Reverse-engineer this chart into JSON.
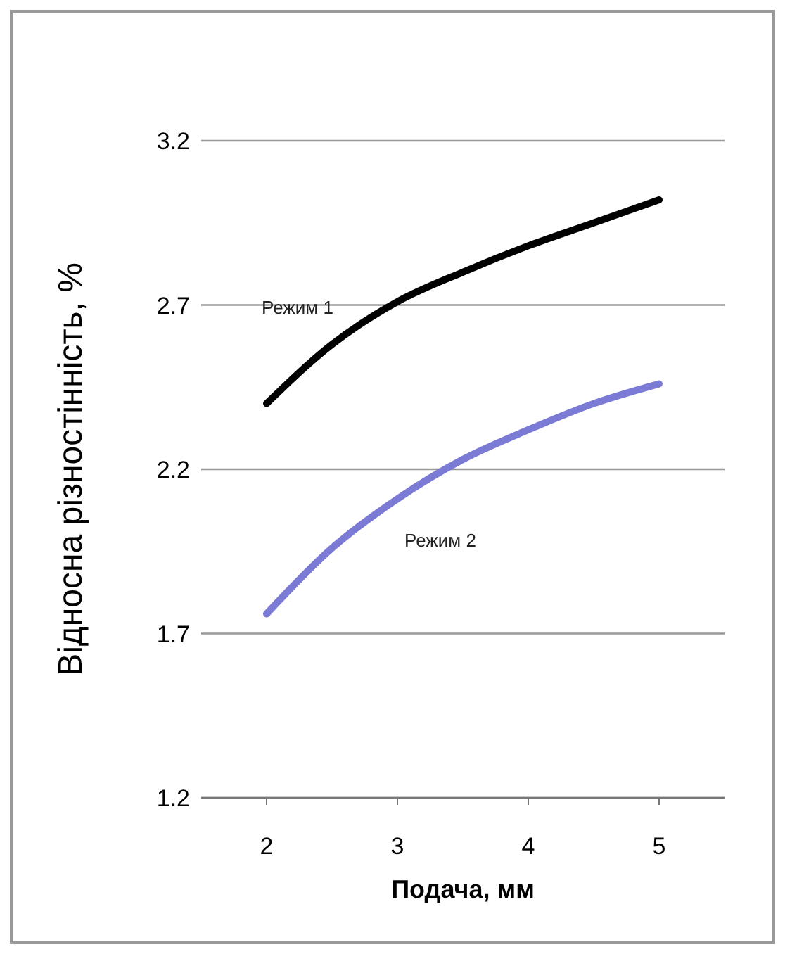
{
  "chart_data": {
    "type": "line",
    "xlabel": "Подача, мм",
    "ylabel": "Відносна різностінність, %",
    "x": [
      2,
      2.5,
      3,
      3.5,
      4,
      4.5,
      5
    ],
    "series": [
      {
        "name": "Режим 1",
        "color": "#000000",
        "values": [
          2.4,
          2.58,
          2.71,
          2.8,
          2.88,
          2.95,
          3.02
        ]
      },
      {
        "name": "Режим 2",
        "color": "#7b7bd6",
        "values": [
          1.76,
          1.96,
          2.11,
          2.23,
          2.32,
          2.4,
          2.46
        ]
      }
    ],
    "xlim": [
      1.5,
      5.5
    ],
    "xticks": [
      2,
      3,
      4,
      5
    ],
    "ylim": [
      1.2,
      3.2
    ],
    "yticks": [
      1.2,
      1.7,
      2.2,
      2.7,
      3.2
    ],
    "grid": "y",
    "marker": "none",
    "line_style": "solid"
  }
}
